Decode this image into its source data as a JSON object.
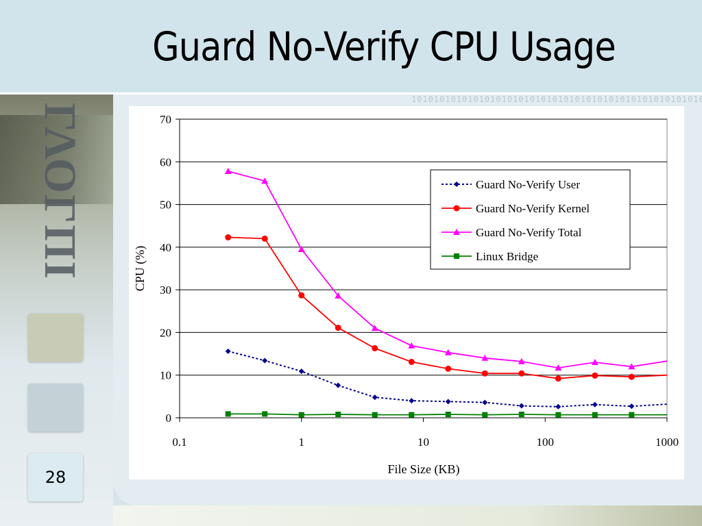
{
  "slide": {
    "title": "Guard No-Verify CPU Usage",
    "page_number": "28",
    "logo_text": "ΓΛΟΓΠΙ"
  },
  "colors": {
    "title_bar": "#d1e4ec",
    "user": "#00008b",
    "kernel": "#ff0000",
    "total": "#ff00ff",
    "bridge": "#008000"
  },
  "chart_data": {
    "type": "line",
    "title": "",
    "xlabel": "File Size (KB)",
    "ylabel": "CPU (%)",
    "x_scale": "log",
    "xlim": [
      0.1,
      1000
    ],
    "ylim": [
      0,
      70
    ],
    "x_ticks": [
      "0.1",
      "1",
      "10",
      "100",
      "1000"
    ],
    "y_ticks": [
      "0",
      "10",
      "20",
      "30",
      "40",
      "50",
      "60",
      "70"
    ],
    "grid": "horizontal",
    "legend_position": "top-right",
    "x": [
      0.25,
      0.5,
      1,
      2,
      4,
      8,
      16,
      32,
      64,
      128,
      256,
      512,
      1024
    ],
    "series": [
      {
        "name": "Guard No-Verify User",
        "color": "#00008b",
        "marker": "diamond",
        "dash": "dotted",
        "values": [
          15.6,
          13.4,
          10.9,
          7.6,
          4.8,
          4.0,
          3.8,
          3.6,
          2.8,
          2.6,
          3.1,
          2.7,
          3.2
        ]
      },
      {
        "name": "Guard No-Verify Kernel",
        "color": "#ff0000",
        "marker": "circle",
        "dash": "solid",
        "values": [
          42.3,
          42.0,
          28.7,
          21.1,
          16.3,
          13.1,
          11.5,
          10.4,
          10.4,
          9.2,
          9.9,
          9.6,
          10.0
        ]
      },
      {
        "name": "Guard No-Verify Total",
        "color": "#ff00ff",
        "marker": "triangle",
        "dash": "solid",
        "values": [
          57.8,
          55.5,
          39.5,
          28.6,
          21.0,
          16.9,
          15.3,
          14.0,
          13.2,
          11.7,
          13.0,
          12.0,
          13.3
        ]
      },
      {
        "name": "Linux Bridge",
        "color": "#008000",
        "marker": "square",
        "dash": "solid",
        "values": [
          0.9,
          0.9,
          0.7,
          0.8,
          0.7,
          0.7,
          0.8,
          0.7,
          0.8,
          0.7,
          0.7,
          0.7,
          0.7
        ]
      }
    ]
  }
}
